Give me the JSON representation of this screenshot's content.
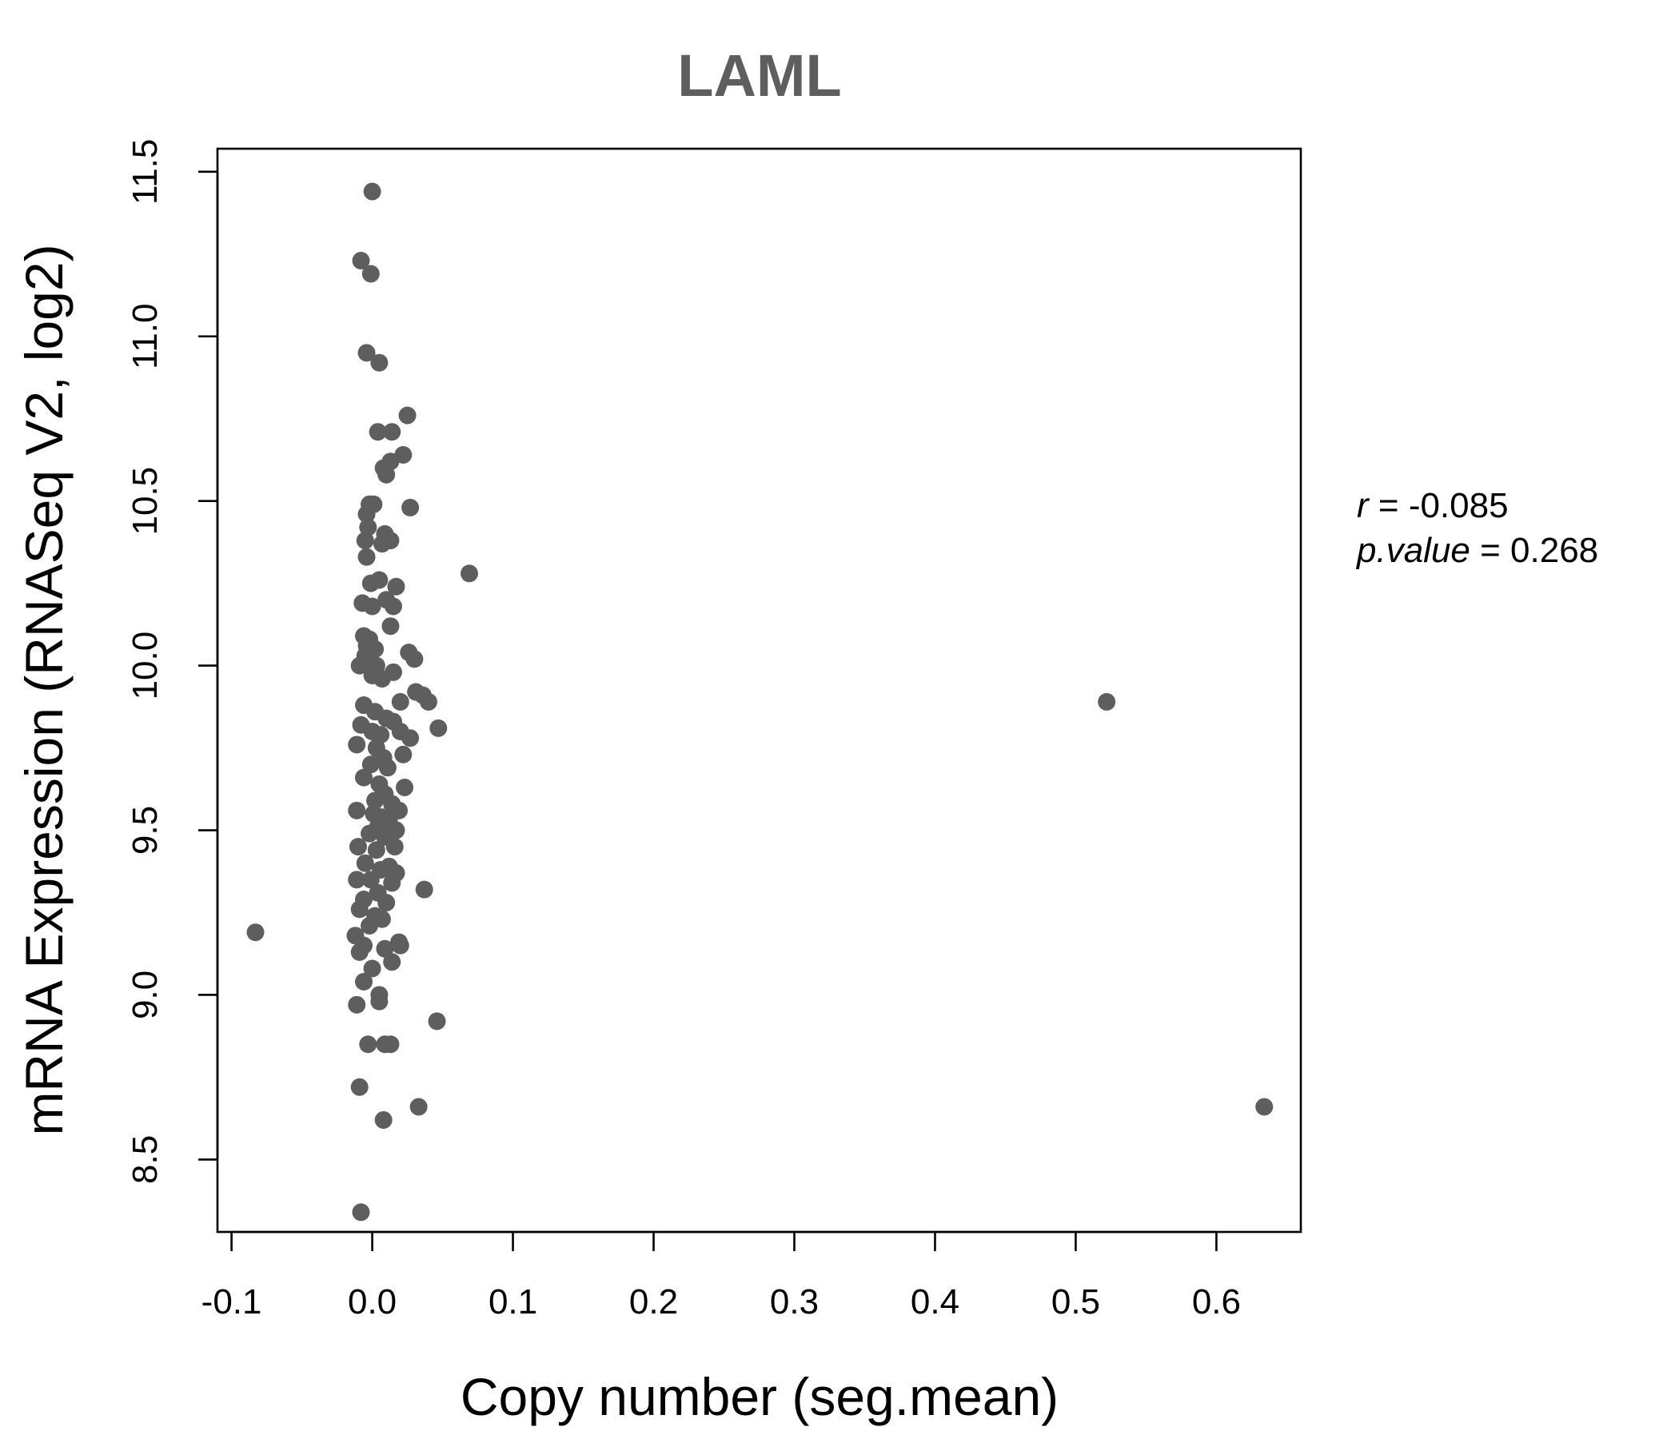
{
  "chart_data": {
    "type": "scatter",
    "title": "LAML",
    "xlabel": "Copy number (seg.mean)",
    "ylabel": "mRNA Expression (RNASeq V2, log2)",
    "xlim": [
      -0.11,
      0.66
    ],
    "ylim": [
      8.28,
      11.57
    ],
    "x_ticks": [
      -0.1,
      0.0,
      0.1,
      0.2,
      0.3,
      0.4,
      0.5,
      0.6
    ],
    "x_tick_labels": [
      "-0.1",
      "0.0",
      "0.1",
      "0.2",
      "0.3",
      "0.4",
      "0.5",
      "0.6"
    ],
    "y_ticks": [
      8.5,
      9.0,
      9.5,
      10.0,
      10.5,
      11.0,
      11.5
    ],
    "y_tick_labels": [
      "8.5",
      "9.0",
      "9.5",
      "10.0",
      "10.5",
      "11.0",
      "11.5"
    ],
    "grid": false,
    "point_color": "#5e5e5e",
    "annotation": {
      "r_label": "r",
      "r_value": "-0.085",
      "p_label": "p.value",
      "p_value": "0.268"
    },
    "points": [
      [
        0.0,
        11.44
      ],
      [
        -0.008,
        11.23
      ],
      [
        -0.001,
        11.19
      ],
      [
        -0.004,
        10.95
      ],
      [
        0.005,
        10.92
      ],
      [
        0.025,
        10.76
      ],
      [
        0.004,
        10.71
      ],
      [
        0.014,
        10.71
      ],
      [
        0.022,
        10.64
      ],
      [
        0.013,
        10.62
      ],
      [
        0.008,
        10.6
      ],
      [
        0.01,
        10.58
      ],
      [
        -0.002,
        10.49
      ],
      [
        0.001,
        10.49
      ],
      [
        0.027,
        10.48
      ],
      [
        -0.004,
        10.46
      ],
      [
        -0.003,
        10.42
      ],
      [
        0.009,
        10.4
      ],
      [
        -0.005,
        10.38
      ],
      [
        0.013,
        10.38
      ],
      [
        0.007,
        10.37
      ],
      [
        -0.004,
        10.33
      ],
      [
        0.069,
        10.28
      ],
      [
        0.005,
        10.26
      ],
      [
        -0.001,
        10.25
      ],
      [
        0.017,
        10.24
      ],
      [
        0.01,
        10.2
      ],
      [
        -0.007,
        10.19
      ],
      [
        0.0,
        10.18
      ],
      [
        0.015,
        10.18
      ],
      [
        0.013,
        10.12
      ],
      [
        -0.006,
        10.09
      ],
      [
        -0.002,
        10.08
      ],
      [
        -0.004,
        10.06
      ],
      [
        0.002,
        10.05
      ],
      [
        0.026,
        10.04
      ],
      [
        0.03,
        10.02
      ],
      [
        -0.005,
        10.03
      ],
      [
        -0.009,
        10.0
      ],
      [
        0.003,
        10.0
      ],
      [
        0.015,
        9.98
      ],
      [
        0.0,
        9.97
      ],
      [
        0.007,
        9.96
      ],
      [
        0.031,
        9.92
      ],
      [
        0.036,
        9.91
      ],
      [
        0.04,
        9.89
      ],
      [
        0.02,
        9.89
      ],
      [
        0.522,
        9.89
      ],
      [
        -0.006,
        9.88
      ],
      [
        0.002,
        9.86
      ],
      [
        0.01,
        9.84
      ],
      [
        0.015,
        9.83
      ],
      [
        -0.008,
        9.82
      ],
      [
        0.047,
        9.81
      ],
      [
        0.02,
        9.8
      ],
      [
        0.0,
        9.8
      ],
      [
        0.006,
        9.79
      ],
      [
        0.027,
        9.78
      ],
      [
        -0.011,
        9.76
      ],
      [
        0.003,
        9.75
      ],
      [
        0.022,
        9.73
      ],
      [
        0.008,
        9.72
      ],
      [
        -0.001,
        9.7
      ],
      [
        0.011,
        9.69
      ],
      [
        -0.006,
        9.66
      ],
      [
        0.005,
        9.64
      ],
      [
        0.023,
        9.63
      ],
      [
        0.009,
        9.61
      ],
      [
        0.002,
        9.59
      ],
      [
        0.014,
        9.58
      ],
      [
        -0.011,
        9.56
      ],
      [
        0.019,
        9.56
      ],
      [
        0.001,
        9.55
      ],
      [
        0.007,
        9.54
      ],
      [
        0.012,
        9.53
      ],
      [
        0.004,
        9.51
      ],
      [
        0.017,
        9.5
      ],
      [
        -0.002,
        9.49
      ],
      [
        0.009,
        9.48
      ],
      [
        0.016,
        9.45
      ],
      [
        -0.01,
        9.45
      ],
      [
        0.003,
        9.44
      ],
      [
        -0.005,
        9.4
      ],
      [
        0.012,
        9.39
      ],
      [
        0.006,
        9.38
      ],
      [
        0.017,
        9.37
      ],
      [
        -0.011,
        9.35
      ],
      [
        -0.001,
        9.35
      ],
      [
        0.014,
        9.34
      ],
      [
        0.037,
        9.32
      ],
      [
        0.004,
        9.31
      ],
      [
        -0.006,
        9.29
      ],
      [
        0.01,
        9.28
      ],
      [
        -0.009,
        9.26
      ],
      [
        0.002,
        9.24
      ],
      [
        0.007,
        9.23
      ],
      [
        -0.002,
        9.21
      ],
      [
        -0.083,
        9.19
      ],
      [
        -0.012,
        9.18
      ],
      [
        0.019,
        9.16
      ],
      [
        0.02,
        9.15
      ],
      [
        -0.006,
        9.15
      ],
      [
        0.009,
        9.14
      ],
      [
        -0.009,
        9.13
      ],
      [
        0.014,
        9.1
      ],
      [
        0.0,
        9.08
      ],
      [
        -0.006,
        9.04
      ],
      [
        0.005,
        9.0
      ],
      [
        0.005,
        8.98
      ],
      [
        -0.011,
        8.97
      ],
      [
        0.046,
        8.92
      ],
      [
        -0.003,
        8.85
      ],
      [
        0.009,
        8.85
      ],
      [
        0.013,
        8.85
      ],
      [
        -0.009,
        8.72
      ],
      [
        0.033,
        8.66
      ],
      [
        0.634,
        8.66
      ],
      [
        0.008,
        8.62
      ],
      [
        -0.008,
        8.34
      ]
    ]
  }
}
